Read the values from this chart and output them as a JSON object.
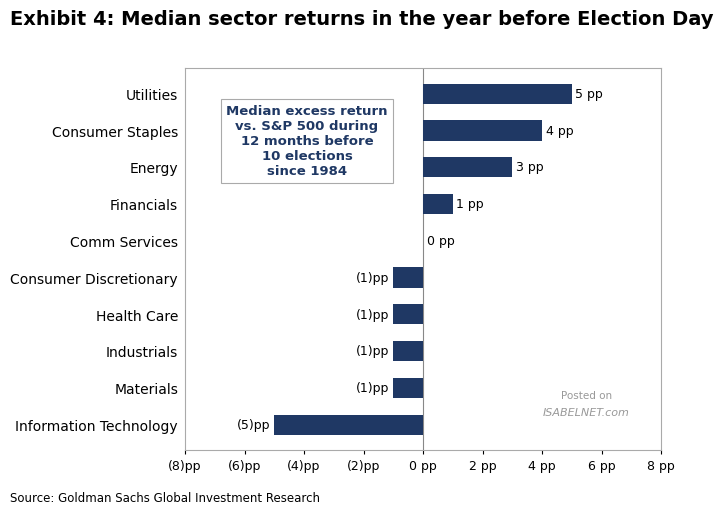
{
  "title": "Exhibit 4: Median sector returns in the year before Election Day",
  "source": "Source: Goldman Sachs Global Investment Research",
  "categories": [
    "Utilities",
    "Consumer Staples",
    "Energy",
    "Financials",
    "Comm Services",
    "Consumer Discretionary",
    "Health Care",
    "Industrials",
    "Materials",
    "Information Technology"
  ],
  "values": [
    5,
    4,
    3,
    1,
    0,
    -1,
    -1,
    -1,
    -1,
    -5
  ],
  "bar_color": "#1f3864",
  "xlim": [
    -8,
    8
  ],
  "xticks": [
    -8,
    -6,
    -4,
    -2,
    0,
    2,
    4,
    6,
    8
  ],
  "xtick_labels": [
    "(8)pp",
    "(6)pp",
    "(4)pp",
    "(2)pp",
    "0 pp",
    "2 pp",
    "4 pp",
    "6 pp",
    "8 pp"
  ],
  "annotation_text": "Median excess return\nvs. S&P 500 during\n12 months before\n10 elections\nsince 1984",
  "annotation_color": "#1f3864",
  "bg_color": "#ffffff",
  "title_fontsize": 14,
  "label_fontsize": 10,
  "tick_fontsize": 9,
  "watermark_line1": "Posted on",
  "watermark_line2": "ISABELNET.com"
}
